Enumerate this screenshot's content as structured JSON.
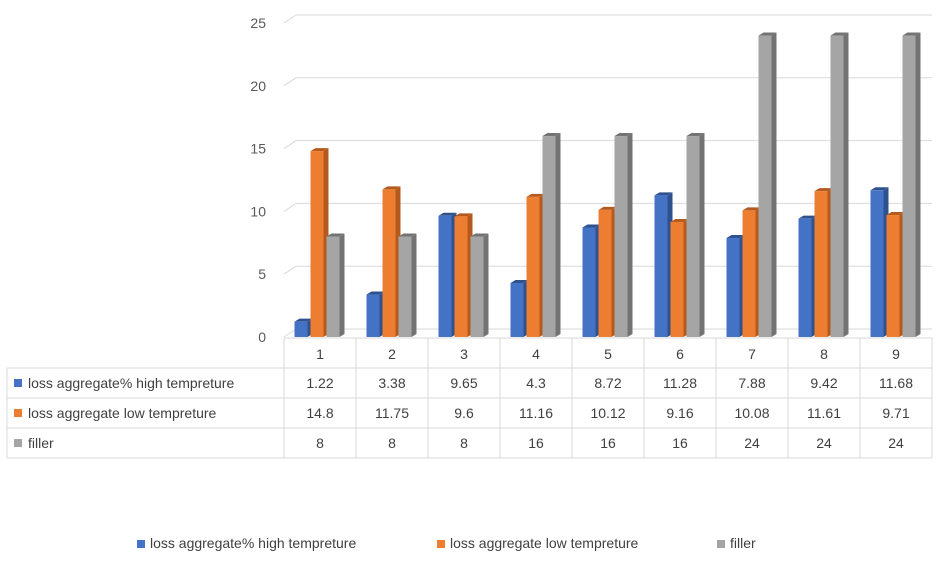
{
  "chart_data": {
    "type": "bar",
    "style": "3d-clustered-column-with-data-table",
    "categories": [
      "1",
      "2",
      "3",
      "4",
      "5",
      "6",
      "7",
      "8",
      "9"
    ],
    "series": [
      {
        "name": "loss aggregate% high tempreture",
        "color": "#4472c4",
        "shade": "#2f528f",
        "values": [
          1.22,
          3.38,
          9.65,
          4.3,
          8.72,
          11.28,
          7.88,
          9.42,
          11.68
        ]
      },
      {
        "name": "loss aggregate low tempreture",
        "color": "#ed7d31",
        "shade": "#b55a1e",
        "values": [
          14.8,
          11.75,
          9.6,
          11.16,
          10.12,
          9.16,
          10.08,
          11.61,
          9.71
        ]
      },
      {
        "name": "filler",
        "color": "#a5a5a5",
        "shade": "#737373",
        "values": [
          8,
          8,
          8,
          16,
          16,
          16,
          24,
          24,
          24
        ]
      }
    ],
    "table_values": [
      [
        "1.22",
        "3.38",
        "9.65",
        "4.3",
        "8.72",
        "11.28",
        "7.88",
        "9.42",
        "11.68"
      ],
      [
        "14.8",
        "11.75",
        "9.6",
        "11.16",
        "10.12",
        "9.16",
        "10.08",
        "11.61",
        "9.71"
      ],
      [
        "8",
        "8",
        "8",
        "16",
        "16",
        "16",
        "24",
        "24",
        "24"
      ]
    ],
    "ylim": [
      0,
      25
    ],
    "yticks": [
      "0",
      "5",
      "10",
      "15",
      "20",
      "25"
    ],
    "grid": true,
    "legend": "bottom"
  }
}
